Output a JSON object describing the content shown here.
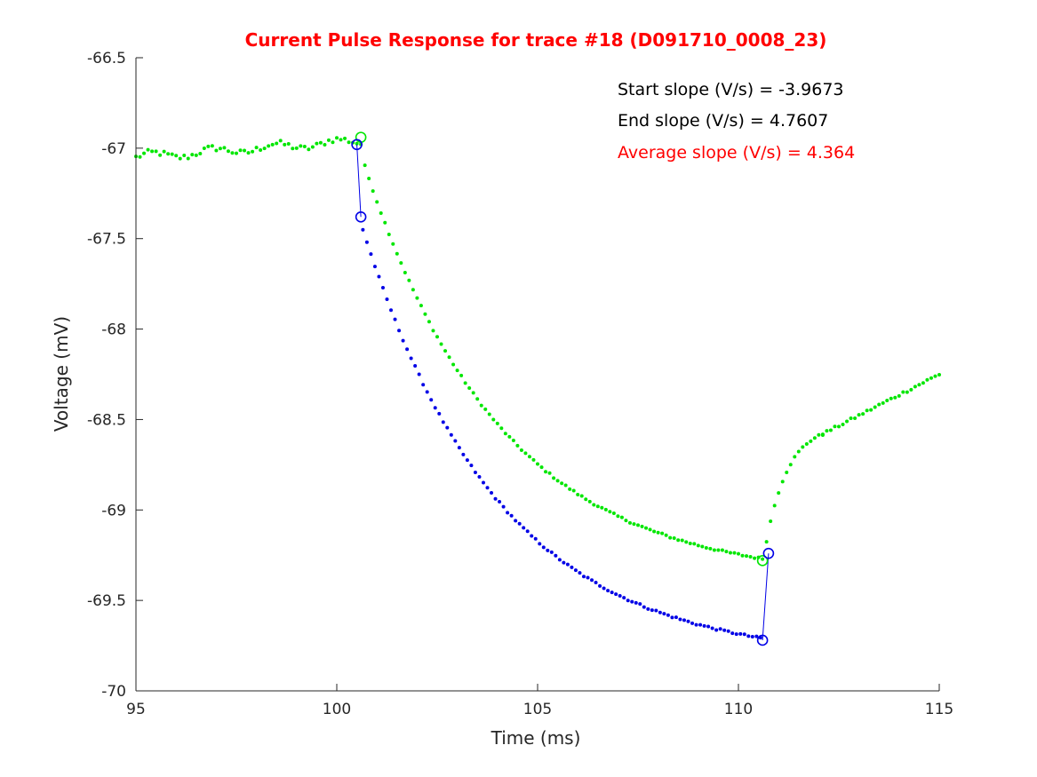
{
  "chart_data": {
    "type": "scatter",
    "title": "Current Pulse Response for trace #18 (D091710_0008_23)",
    "xlabel": "Time (ms)",
    "ylabel": "Voltage (mV)",
    "xlim": [
      95,
      115
    ],
    "ylim": [
      -70,
      -66.5
    ],
    "xticks": [
      95,
      100,
      105,
      110,
      115
    ],
    "yticks": [
      -70,
      -69.5,
      -69,
      -68.5,
      -68,
      -67.5,
      -67,
      -66.5
    ],
    "grid": false,
    "annotations": [
      {
        "text": "Start slope (V/s) = -3.9673",
        "color": "#000000"
      },
      {
        "text": "End slope (V/s) = 4.7607",
        "color": "#000000"
      },
      {
        "text": "Average slope (V/s) = 4.364",
        "color": "#ff0000"
      }
    ],
    "series": [
      {
        "color": "#00e600",
        "marker": "dot",
        "segments": [
          {
            "t0": 95.0,
            "t1": 100.6,
            "v0": -67.05,
            "v1": -66.96,
            "shape": "flat",
            "noise": 0.018
          },
          {
            "t0": 100.7,
            "t1": 110.6,
            "v0": -67.1,
            "v1": -69.27,
            "shape": "decay",
            "tau": 3.4,
            "noise": 0.006
          },
          {
            "t0": 110.7,
            "t1": 112.1,
            "v0": -69.17,
            "v1": -68.58,
            "shape": "recover",
            "tau": 0.55,
            "noise": 0.006
          },
          {
            "t0": 112.1,
            "t1": 115.0,
            "v0": -68.58,
            "v1": -68.25,
            "shape": "linear",
            "noise": 0.008
          }
        ]
      },
      {
        "color": "#0000e6",
        "marker": "dot",
        "segments": [
          {
            "t0": 100.65,
            "t1": 110.6,
            "v0": -67.45,
            "v1": -69.71,
            "shape": "decay",
            "tau": 3.4,
            "noise": 0.006
          }
        ]
      }
    ],
    "markers": [
      {
        "x": 100.6,
        "y": -66.94,
        "color": "#00e600"
      },
      {
        "x": 110.6,
        "y": -69.28,
        "color": "#00e600"
      },
      {
        "x": 100.5,
        "y": -66.98,
        "color": "#0000e6"
      },
      {
        "x": 100.6,
        "y": -67.38,
        "color": "#0000e6"
      },
      {
        "x": 110.6,
        "y": -69.72,
        "color": "#0000e6"
      },
      {
        "x": 110.75,
        "y": -69.24,
        "color": "#0000e6"
      }
    ],
    "slope_lines": [
      {
        "x": [
          100.5,
          100.6
        ],
        "y": [
          -66.98,
          -67.38
        ],
        "color": "#0000e6"
      },
      {
        "x": [
          110.6,
          110.75
        ],
        "y": [
          -69.72,
          -69.24
        ],
        "color": "#0000e6"
      }
    ]
  }
}
